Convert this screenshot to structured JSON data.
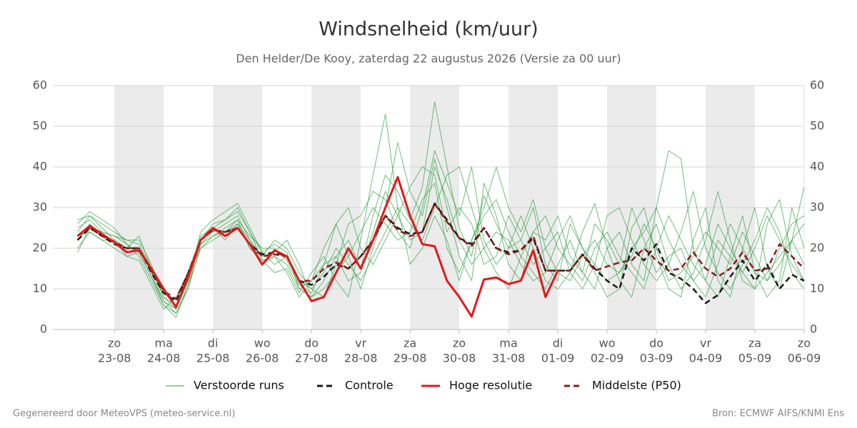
{
  "chart_data": {
    "type": "line",
    "title": "Windsnelheid (km/uur)",
    "subtitle": "Den Helder/De Kooy, zaterdag 22 augustus 2026 (Versie za 00 uur)",
    "footer_left": "Gegenereerd door MeteoVPS (meteo-service.nl)",
    "footer_right": "Bron: ECMWF AIFS/KNMI Ens",
    "grid": true,
    "xlim": [
      -0.25,
      15
    ],
    "ylim": [
      0,
      60
    ],
    "yticks": [
      0,
      10,
      20,
      30,
      40,
      50,
      60
    ],
    "xticks": [
      {
        "value": 1,
        "label": [
          "zo",
          "23-08"
        ]
      },
      {
        "value": 2,
        "label": [
          "ma",
          "24-08"
        ]
      },
      {
        "value": 3,
        "label": [
          "di",
          "25-08"
        ]
      },
      {
        "value": 4,
        "label": [
          "wo",
          "26-08"
        ]
      },
      {
        "value": 5,
        "label": [
          "do",
          "27-08"
        ]
      },
      {
        "value": 6,
        "label": [
          "vr",
          "28-08"
        ]
      },
      {
        "value": 7,
        "label": [
          "za",
          "29-08"
        ]
      },
      {
        "value": 8,
        "label": [
          "zo",
          "30-08"
        ]
      },
      {
        "value": 9,
        "label": [
          "ma",
          "31-08"
        ]
      },
      {
        "value": 10,
        "label": [
          "di",
          "01-09"
        ]
      },
      {
        "value": 11,
        "label": [
          "wo",
          "02-09"
        ]
      },
      {
        "value": 12,
        "label": [
          "do",
          "03-09"
        ]
      },
      {
        "value": 13,
        "label": [
          "vr",
          "04-09"
        ]
      },
      {
        "value": 14,
        "label": [
          "za",
          "05-09"
        ]
      },
      {
        "value": 15,
        "label": [
          "zo",
          "06-09"
        ]
      }
    ],
    "x": [
      0.25,
      0.5,
      0.75,
      1,
      1.25,
      1.5,
      1.75,
      2,
      2.25,
      2.5,
      2.75,
      3,
      3.25,
      3.5,
      3.75,
      4,
      4.25,
      4.5,
      4.75,
      5,
      5.25,
      5.5,
      5.75,
      6,
      6.25,
      6.5,
      6.75,
      7,
      7.25,
      7.5,
      7.75,
      8,
      8.25,
      8.5,
      8.75,
      9,
      9.25,
      9.5,
      9.75,
      10,
      10.25,
      10.5,
      10.75,
      11,
      11.25,
      11.5,
      11.75,
      12,
      12.25,
      12.5,
      12.75,
      13,
      13.25,
      13.5,
      13.75,
      14,
      14.25,
      14.5,
      14.75,
      15
    ],
    "ensemble": {
      "name": "Verstoorde runs",
      "color": "#2e9e3e",
      "runs": [
        [
          24,
          28,
          26,
          24,
          22,
          22,
          16,
          8,
          5,
          12,
          24,
          27,
          29,
          31,
          25,
          19,
          21,
          19,
          10,
          8,
          12,
          18,
          22,
          15,
          28,
          38,
          34,
          27,
          35,
          56,
          40,
          25,
          18,
          33,
          26,
          20,
          22,
          30,
          16,
          12,
          26,
          20,
          14,
          8,
          10,
          25,
          30,
          18,
          10,
          8,
          22,
          30,
          12,
          8,
          20,
          30,
          15,
          10,
          22,
          35
        ],
        [
          26,
          29,
          27,
          25,
          21,
          18,
          12,
          6,
          4,
          10,
          21,
          24,
          26,
          28,
          22,
          16,
          18,
          14,
          8,
          12,
          20,
          26,
          18,
          10,
          20,
          30,
          46,
          34,
          28,
          42,
          30,
          18,
          12,
          36,
          28,
          16,
          12,
          24,
          22,
          28,
          18,
          14,
          10,
          20,
          24,
          16,
          12,
          30,
          44,
          42,
          20,
          12,
          8,
          18,
          28,
          14,
          8,
          12,
          30,
          20
        ],
        [
          20,
          24,
          22,
          22,
          18,
          17,
          11,
          5,
          8,
          14,
          20,
          22,
          24,
          27,
          20,
          18,
          22,
          20,
          14,
          10,
          8,
          16,
          26,
          28,
          34,
          32,
          24,
          20,
          30,
          44,
          36,
          28,
          40,
          22,
          16,
          20,
          28,
          20,
          12,
          10,
          14,
          24,
          31,
          20,
          12,
          8,
          20,
          26,
          16,
          10,
          14,
          22,
          34,
          22,
          12,
          10,
          26,
          32,
          18,
          12
        ],
        [
          19,
          25,
          24,
          23,
          21,
          19,
          13,
          6,
          3,
          11,
          22,
          26,
          27,
          30,
          24,
          17,
          14,
          15,
          9,
          14,
          18,
          12,
          8,
          22,
          38,
          53,
          30,
          16,
          20,
          28,
          22,
          12,
          22,
          28,
          32,
          24,
          18,
          14,
          10,
          16,
          22,
          14,
          26,
          22,
          16,
          30,
          22,
          14,
          18,
          20,
          12,
          8,
          16,
          26,
          20,
          14,
          12,
          20,
          26,
          28
        ],
        [
          27,
          28,
          25,
          22,
          20,
          23,
          15,
          9,
          6,
          14,
          21,
          23,
          25,
          27,
          23,
          20,
          20,
          17,
          11,
          9,
          16,
          26,
          30,
          20,
          16,
          22,
          28,
          35,
          40,
          38,
          24,
          30,
          26,
          16,
          18,
          28,
          22,
          16,
          20,
          24,
          14,
          10,
          16,
          28,
          30,
          22,
          16,
          12,
          16,
          24,
          34,
          20,
          14,
          10,
          16,
          22,
          30,
          24,
          14,
          10
        ],
        [
          22,
          26,
          23,
          21,
          19,
          20,
          14,
          7,
          5,
          13,
          23,
          25,
          22,
          26,
          22,
          18,
          19,
          22,
          16,
          8,
          10,
          14,
          18,
          24,
          30,
          26,
          22,
          24,
          32,
          36,
          20,
          14,
          22,
          30,
          40,
          30,
          24,
          32,
          20,
          14,
          12,
          18,
          22,
          16,
          14,
          18,
          26,
          20,
          12,
          14,
          18,
          24,
          20,
          16,
          24,
          18,
          12,
          16,
          22,
          26
        ],
        [
          25,
          27,
          24,
          23,
          22,
          21,
          15,
          8,
          6,
          12,
          22,
          25,
          27,
          29,
          24,
          19,
          16,
          18,
          12,
          10,
          14,
          20,
          16,
          12,
          18,
          24,
          30,
          26,
          22,
          30,
          38,
          40,
          30,
          20,
          14,
          10,
          18,
          24,
          28,
          20,
          16,
          12,
          20,
          24,
          18,
          14,
          10,
          20,
          28,
          22,
          16,
          12,
          22,
          18,
          14,
          20,
          28,
          22,
          16,
          12
        ],
        [
          23,
          24,
          22,
          20,
          18,
          19,
          13,
          7,
          4,
          11,
          20,
          23,
          24,
          26,
          20,
          17,
          18,
          16,
          10,
          12,
          16,
          18,
          12,
          14,
          24,
          34,
          28,
          22,
          24,
          40,
          32,
          22,
          16,
          20,
          24,
          22,
          16,
          12,
          14,
          22,
          28,
          20,
          16,
          12,
          14,
          20,
          24,
          30,
          22,
          16,
          12,
          16,
          26,
          20,
          14,
          10,
          14,
          18,
          22,
          16
        ]
      ]
    },
    "series": [
      {
        "name": "Controle",
        "color": "#1a1a1a",
        "dash": true,
        "values": [
          22,
          25,
          23,
          21,
          20,
          20,
          14,
          9,
          7,
          14,
          22,
          24.5,
          24,
          25,
          21,
          18.5,
          19,
          18,
          12,
          11,
          13,
          16,
          15,
          18,
          22,
          28,
          25,
          23.5,
          24,
          31,
          27,
          22.5,
          21,
          25,
          20,
          19,
          19.5,
          22.5,
          14.5,
          14.5,
          14.5,
          18.5,
          15,
          12,
          10,
          20,
          17,
          21,
          14,
          12.5,
          10,
          6.5,
          8.5,
          13,
          17,
          12,
          16,
          10,
          13.5,
          12
        ]
      },
      {
        "name": "Hoge resolutie",
        "color": "#e0191b",
        "dash": false,
        "values": [
          23,
          25.5,
          23.5,
          21.5,
          19,
          19.5,
          15,
          10,
          5.5,
          13,
          22,
          25,
          23,
          25,
          21,
          16,
          19.5,
          18,
          12,
          7,
          8,
          14,
          20,
          15,
          22,
          30,
          37.5,
          28,
          21,
          20.5,
          12,
          8,
          3.2,
          12.3,
          12.8,
          11.2,
          12,
          19.5,
          8,
          14.5,
          null,
          null,
          null,
          null,
          null,
          null,
          null,
          null,
          null,
          null,
          null,
          null,
          null,
          null,
          null,
          null,
          null,
          null,
          null,
          null
        ]
      },
      {
        "name": "Middelste (P50)",
        "color": "#8b1a1a",
        "dash": true,
        "values": [
          23,
          25,
          23,
          21.5,
          20,
          20,
          14.5,
          9.5,
          7.5,
          14,
          22,
          24.5,
          24,
          25,
          21,
          18,
          18.5,
          18,
          12,
          12,
          15,
          16.5,
          15,
          18,
          22,
          28,
          24.5,
          23,
          24,
          31,
          26.5,
          22.5,
          20.5,
          25,
          20,
          18.5,
          19.5,
          23,
          14.5,
          14.5,
          14.5,
          18.5,
          14.5,
          15.5,
          16.5,
          17,
          20,
          17,
          14.5,
          15,
          19,
          15,
          13,
          15,
          19,
          14.5,
          15,
          21,
          18,
          15
        ]
      }
    ]
  }
}
